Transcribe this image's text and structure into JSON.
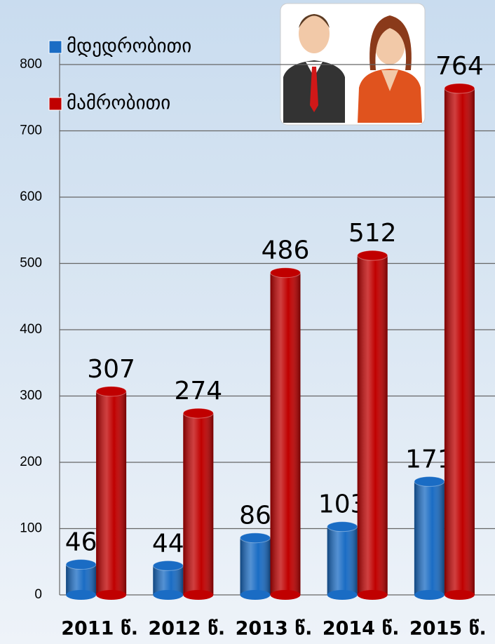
{
  "chart_data": {
    "type": "bar",
    "categories": [
      "2011 წ.",
      "2012 წ.",
      "2013 წ.",
      "2014 წ.",
      "2015 წ."
    ],
    "series": [
      {
        "name": "მდედრობითი",
        "color": "#1a6cc4",
        "values": [
          46,
          44,
          86,
          103,
          171
        ]
      },
      {
        "name": "მამრობითი",
        "color": "#c00000",
        "values": [
          307,
          274,
          486,
          512,
          764
        ]
      }
    ],
    "ylim": [
      0,
      800
    ],
    "yticks": [
      0,
      100,
      200,
      300,
      400,
      500,
      600,
      700,
      800
    ],
    "grid": true
  }
}
